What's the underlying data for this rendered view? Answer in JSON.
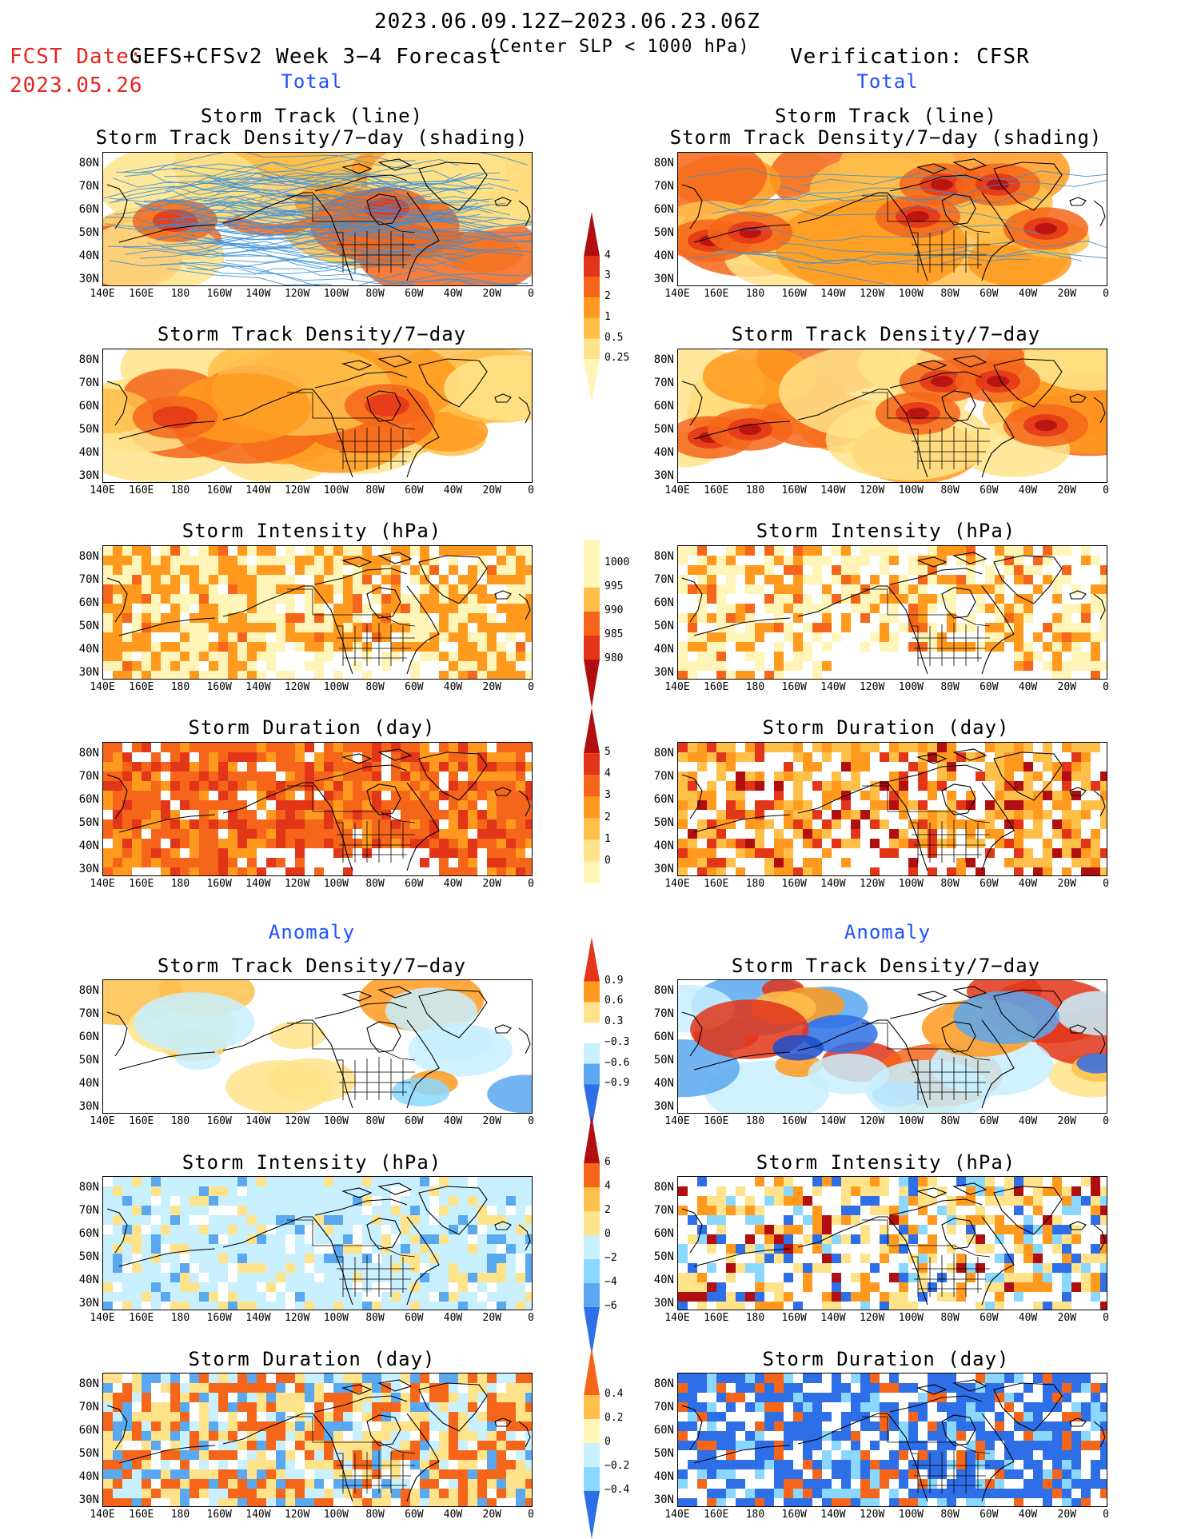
{
  "header": {
    "date_range": "2023.06.09.12Z−2023.06.23.06Z",
    "criterion": "(Center SLP < 1000 hPa)",
    "fcst_label": "FCST Date:",
    "fcst_date": "2023.05.26",
    "forecast_system": "GEFS+CFSv2 Week 3−4 Forecast",
    "verification": "Verification: CFSR"
  },
  "sections": {
    "total": "Total",
    "anomaly": "Anomaly"
  },
  "panel_titles": {
    "track_line": "Storm Track (line)",
    "track_shading": "Storm Track Density/7−day (shading)",
    "density": "Storm Track Density/7−day",
    "intensity": "Storm Intensity (hPa)",
    "duration": "Storm Duration (day)"
  },
  "axes": {
    "lat_labels": [
      "80N",
      "70N",
      "60N",
      "50N",
      "40N",
      "30N"
    ],
    "lon_labels": [
      "140E",
      "160E",
      "180",
      "160W",
      "140W",
      "120W",
      "100W",
      "80W",
      "60W",
      "40W",
      "20W",
      "0"
    ]
  },
  "colorbars": {
    "density_total": [
      "4",
      "3",
      "2",
      "1",
      "0.5",
      "0.25"
    ],
    "intensity_total": [
      "1000",
      "995",
      "990",
      "985",
      "980"
    ],
    "duration_total": [
      "5",
      "4",
      "3",
      "2",
      "1",
      "0"
    ],
    "density_anom": [
      "0.9",
      "0.6",
      "0.3",
      "−0.3",
      "−0.6",
      "−0.9"
    ],
    "intensity_anom": [
      "6",
      "4",
      "2",
      "0",
      "−2",
      "−4",
      "−6"
    ],
    "duration_anom": [
      "0.4",
      "0.2",
      "0",
      "−0.2",
      "−0.4"
    ]
  },
  "colors": {
    "warm": [
      "#fff5b8",
      "#ffe38a",
      "#ffc04a",
      "#ff9a1e",
      "#f5661a",
      "#e33518",
      "#b10e10"
    ],
    "cool": [
      "#c8f0ff",
      "#8ad8ff",
      "#5aa8f0",
      "#2e6ee6",
      "#1a4fcf"
    ],
    "title_red": "#e52420",
    "section_blue": "#1f4fff",
    "track_line": "#3a8fd8"
  }
}
